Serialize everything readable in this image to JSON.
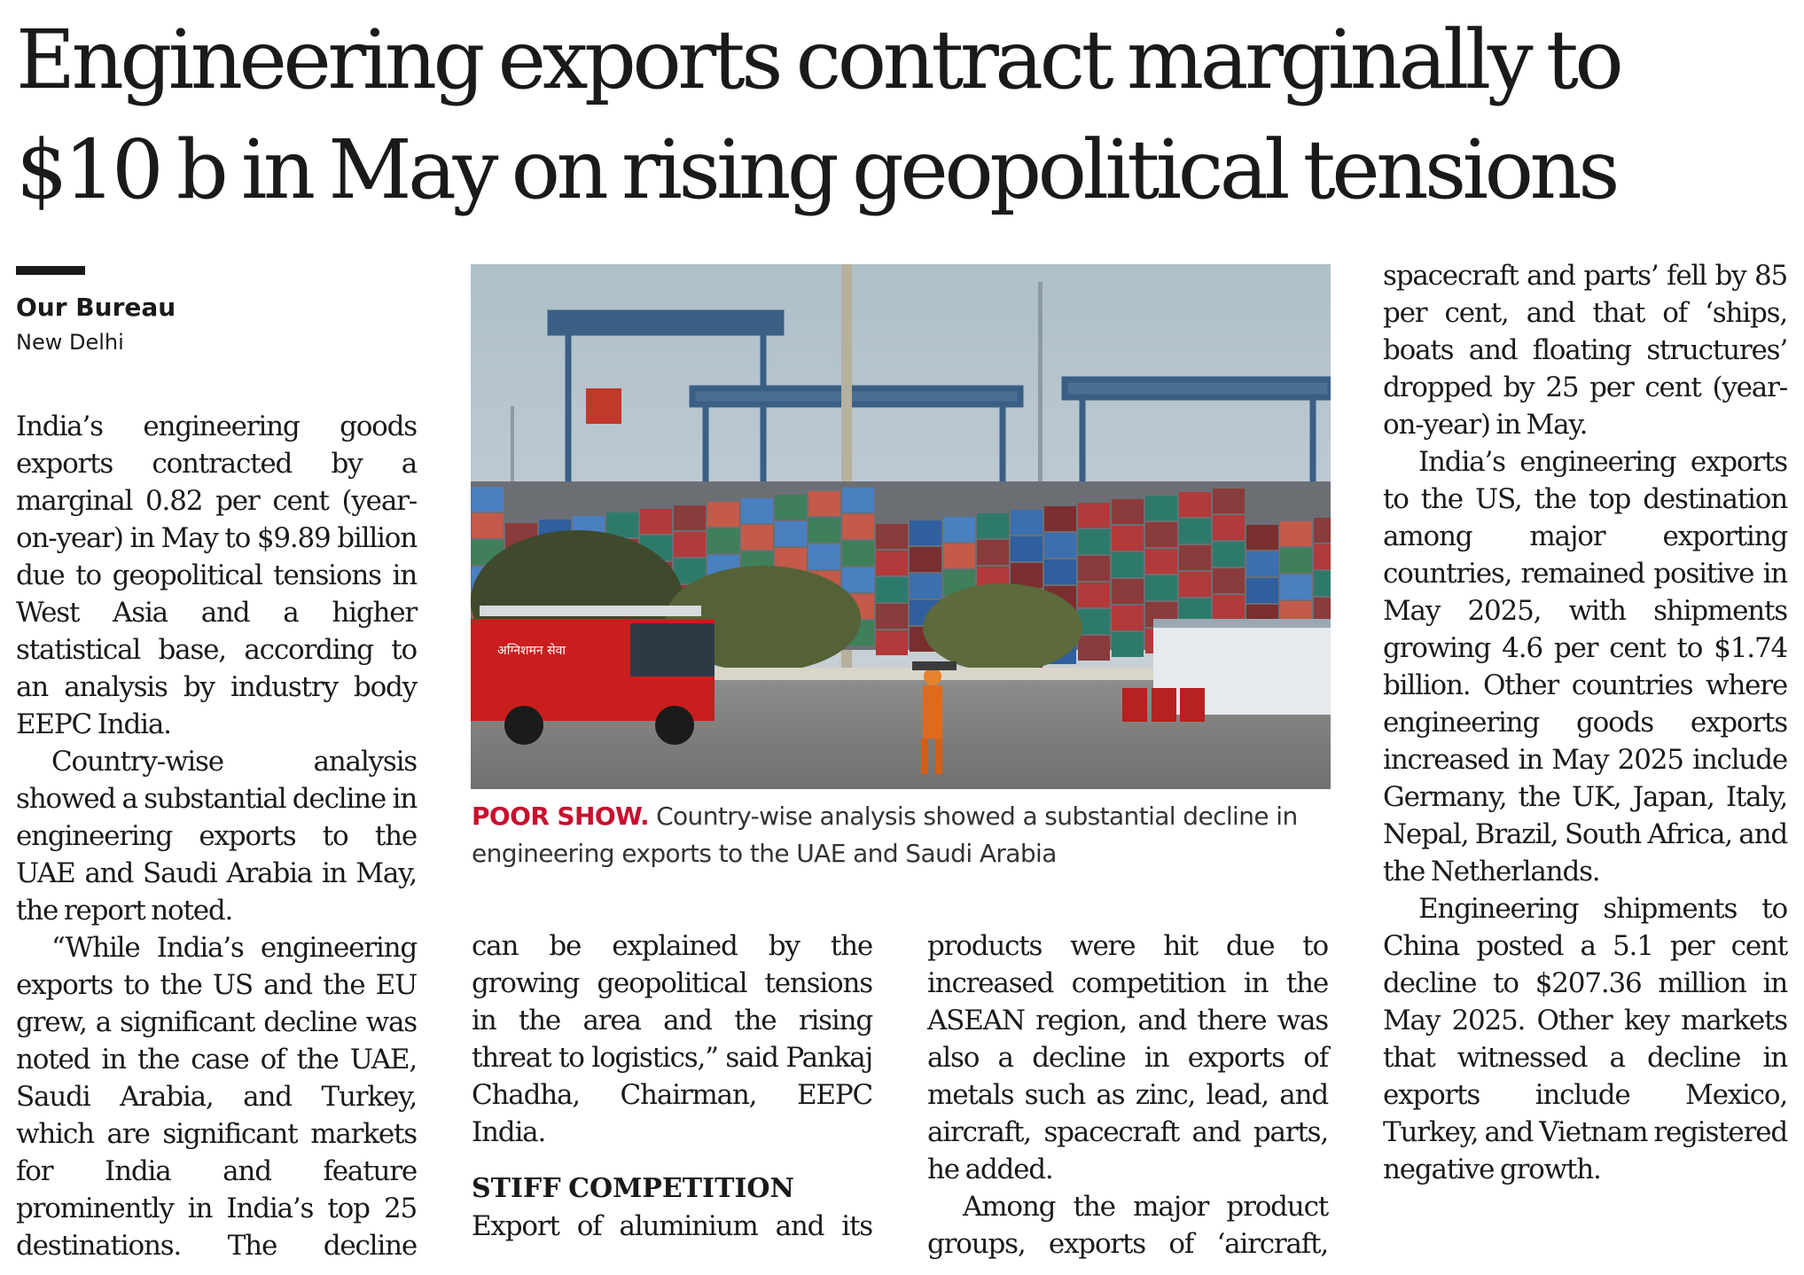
{
  "headline": {
    "line1": "Engineering exports contract marginally to",
    "line2": "$10 b in May on rising geopolitical tensions"
  },
  "byline": {
    "name": "Our Bureau",
    "place": "New Delhi"
  },
  "photo": {
    "caption_label": "POOR SHOW.",
    "caption_text": "Country-wise analysis showed a substantial decline in engineering exports to the UAE and Saudi Arabia",
    "truck_text": "अग्निशमन सेवा"
  },
  "article": {
    "p1": "India’s engineering goods exports contracted by a marginal 0.82 per cent (year-on-year) in May to $9.89 billion due to geopolitical tensions in West Asia and a higher statistical base, according to an analysis by industry body EEPC India.",
    "p2": "Country-wise analysis showed a substantial decline in engineering exports to the UAE and Saudi Arabia in May, the report noted.",
    "p3_part1": "“While India’s engineering exports to the US and the EU grew, a significant decline was noted in the case of the UAE, Saudi Arabia, and Turkey, which are significant markets for India and feature prominently in India’s top 25 destinations. The decline",
    "p3_part2": "can be explained by the growing geopolitical tensions in the area and the rising threat to logistics,” said Pankaj Chadha, Chairman, EEPC India.",
    "subhead": "STIFF COMPETITION",
    "p4_part1": "Export of aluminium and its",
    "p4_part2": "products were hit due to increased competition in the ASEAN region, and there was also a decline in exports of metals such as zinc, lead, and aircraft, spacecraft and parts, he added.",
    "p5_part1": "Among the major product groups, exports of ‘aircraft,",
    "p5_part2": "spacecraft and parts’ fell by 85 per cent, and that of ‘ships, boats and floating structures’ dropped by 25 per cent (year-on-year) in May.",
    "p6": "India’s engineering exports to the US, the top destination among major exporting countries, remained positive in May 2025, with shipments growing 4.6 per cent to $1.74 billion. Other countries where engineering goods exports increased in May 2025 include Germany, the UK, Japan, Italy, Nepal, Brazil, South Africa, and the Netherlands.",
    "p7": "Engineering shipments to China posted a 5.1 per cent decline to $207.36 million in May 2025. Other key markets that witnessed a decline in exports include Mexico, Turkey, and Vietnam registered negative growth."
  }
}
